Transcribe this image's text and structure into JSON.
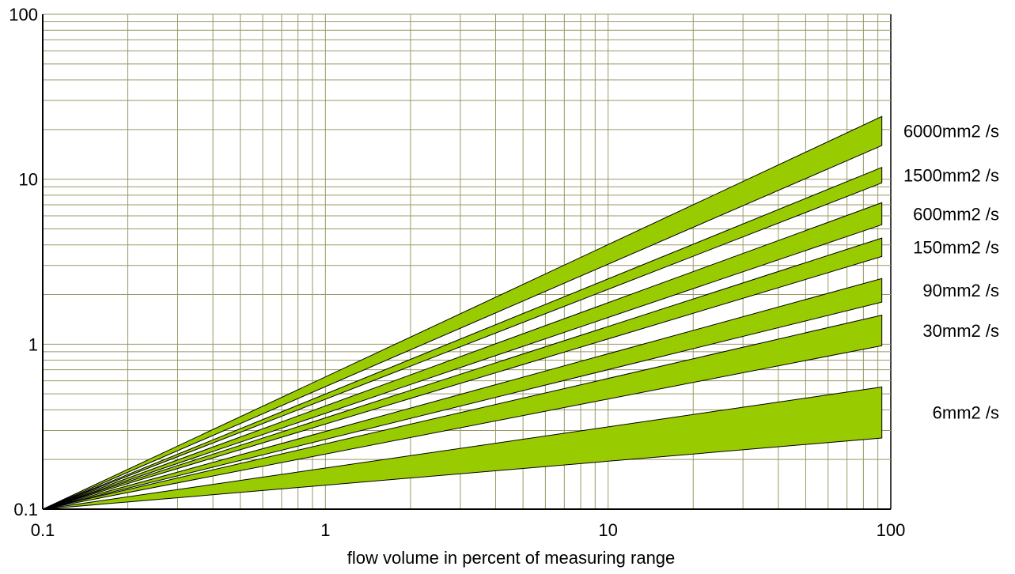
{
  "chart_data": {
    "type": "area",
    "xscale": "log",
    "yscale": "log",
    "xlim": [
      0.1,
      100
    ],
    "ylim": [
      0.1,
      100
    ],
    "grid": true,
    "xlabel": "flow volume in percent of measuring range",
    "ylabel": "",
    "x_ticks": [
      "0.1",
      "1",
      "10",
      "100"
    ],
    "y_ticks": [
      "0.1",
      "1",
      "10",
      "100"
    ],
    "series": [
      {
        "name": "6000mm2 /s",
        "x": [
          0.1,
          93
        ],
        "lower": [
          0.1,
          16.0
        ],
        "upper": [
          0.1,
          24.0
        ]
      },
      {
        "name": "1500mm2 /s",
        "x": [
          0.1,
          93
        ],
        "lower": [
          0.1,
          9.5
        ],
        "upper": [
          0.1,
          11.8
        ]
      },
      {
        "name": "600mm2  /s",
        "x": [
          0.1,
          93
        ],
        "lower": [
          0.1,
          5.3
        ],
        "upper": [
          0.1,
          7.2
        ]
      },
      {
        "name": "150mm2 /s",
        "x": [
          0.1,
          93
        ],
        "lower": [
          0.1,
          3.4
        ],
        "upper": [
          0.1,
          4.4
        ]
      },
      {
        "name": "90mm2 /s",
        "x": [
          0.1,
          93
        ],
        "lower": [
          0.1,
          1.8
        ],
        "upper": [
          0.1,
          2.5
        ]
      },
      {
        "name": "30mm2 /s",
        "x": [
          0.1,
          93
        ],
        "lower": [
          0.1,
          0.98
        ],
        "upper": [
          0.1,
          1.5
        ]
      },
      {
        "name": "6mm2 /s",
        "x": [
          0.1,
          93
        ],
        "lower": [
          0.1,
          0.27
        ],
        "upper": [
          0.1,
          0.55
        ]
      }
    ],
    "colors": {
      "band_fill": "#99cc00",
      "grid": "#999966",
      "outline": "#000000"
    }
  }
}
